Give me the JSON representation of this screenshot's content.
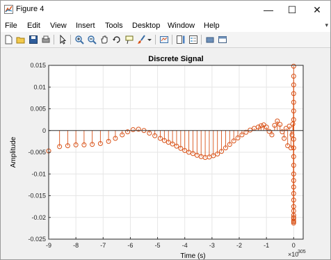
{
  "window": {
    "title": "Figure 4",
    "controls": {
      "minimize": "—",
      "maximize": "☐",
      "close": "✕"
    }
  },
  "menu": {
    "items": [
      "File",
      "Edit",
      "View",
      "Insert",
      "Tools",
      "Desktop",
      "Window",
      "Help"
    ],
    "expander": "▾"
  },
  "toolbar": {
    "icons": [
      "new-figure-icon",
      "open-file-icon",
      "save-icon",
      "print-icon",
      "pointer-icon",
      "zoom-in-icon",
      "zoom-out-icon",
      "pan-icon",
      "rotate-3d-icon",
      "data-cursor-icon",
      "brush-icon",
      "brush-dropdown-icon",
      "link-plot-icon",
      "insert-colorbar-icon",
      "insert-legend-icon",
      "hide-plot-tools-icon",
      "show-plot-tools-icon"
    ]
  },
  "colors": {
    "stem": "#d95319",
    "baseline": "#333333",
    "axes_bg": "#ffffff",
    "grid": "#e6e6e6"
  },
  "chart_data": {
    "type": "stem",
    "title": "Discrete  Signal",
    "xlabel": "Time (s)",
    "ylabel": "Amplitude",
    "x_exponent_label": "×10",
    "x_exponent": "305",
    "xlim": [
      -9,
      0.35
    ],
    "ylim": [
      -0.025,
      0.015
    ],
    "xticks": [
      -9,
      -8,
      -7,
      -6,
      -5,
      -4,
      -3,
      -2,
      -1,
      0
    ],
    "xtick_labels": [
      "-9",
      "-8",
      "-7",
      "-6",
      "-5",
      "-4",
      "-3",
      "-2",
      "-1",
      "0"
    ],
    "yticks": [
      0.015,
      0.01,
      0.005,
      0,
      -0.005,
      -0.01,
      -0.015,
      -0.02,
      -0.025
    ],
    "ytick_labels": [
      "0.015",
      "0.01",
      "0.005",
      "0",
      "-0.005",
      "-0.01",
      "-0.015",
      "-0.02",
      "-0.025"
    ],
    "grid": true,
    "marker": "circle",
    "x": [
      -9.0,
      -8.6,
      -8.3,
      -8.0,
      -7.7,
      -7.4,
      -7.1,
      -6.8,
      -6.55,
      -6.3,
      -6.1,
      -5.9,
      -5.7,
      -5.5,
      -5.3,
      -5.1,
      -4.9,
      -4.75,
      -4.6,
      -4.45,
      -4.3,
      -4.15,
      -4.0,
      -3.85,
      -3.7,
      -3.55,
      -3.4,
      -3.25,
      -3.1,
      -2.95,
      -2.8,
      -2.65,
      -2.5,
      -2.35,
      -2.2,
      -2.05,
      -1.9,
      -1.75,
      -1.6,
      -1.45,
      -1.3,
      -1.2,
      -1.1,
      -1.0,
      -0.9,
      -0.8,
      -0.7,
      -0.6,
      -0.5,
      -0.42,
      -0.35,
      -0.28,
      -0.22,
      -0.16,
      -0.1,
      -0.06,
      -0.03,
      0.0,
      0.0,
      0.0,
      0.0,
      0.0,
      0.0,
      0.0,
      0.0,
      0.0,
      0.0,
      0.0,
      0.0,
      0.0,
      0.0,
      0.0,
      0.0,
      0.0,
      0.0,
      0.0,
      0.0,
      0.0,
      0.0,
      0.0,
      0.0
    ],
    "y": [
      -0.0047,
      -0.0037,
      -0.0035,
      -0.0033,
      -0.0033,
      -0.0032,
      -0.003,
      -0.0025,
      -0.0018,
      -0.001,
      -0.0003,
      0.0002,
      0.0003,
      0.0,
      -0.0006,
      -0.0012,
      -0.0018,
      -0.0023,
      -0.0027,
      -0.0031,
      -0.0036,
      -0.0041,
      -0.0046,
      -0.005,
      -0.0053,
      -0.0057,
      -0.006,
      -0.0062,
      -0.0061,
      -0.0058,
      -0.0054,
      -0.0048,
      -0.004,
      -0.0032,
      -0.0024,
      -0.0017,
      -0.001,
      -0.0004,
      0.0001,
      0.0005,
      0.0008,
      0.0011,
      0.0013,
      0.0008,
      -0.0002,
      -0.001,
      0.0012,
      0.0022,
      0.0014,
      -0.0003,
      -0.0018,
      0.0005,
      -0.0035,
      0.001,
      -0.004,
      -0.001,
      0.0015,
      0.0148,
      0.0125,
      0.0105,
      0.0085,
      0.0065,
      0.0045,
      0.0025,
      -0.002,
      -0.004,
      -0.006,
      -0.008,
      -0.01,
      -0.0115,
      -0.013,
      -0.0145,
      -0.016,
      -0.0175,
      -0.0185,
      -0.0195,
      -0.0203,
      -0.0208,
      -0.0213,
      -0.021,
      -0.02
    ]
  }
}
